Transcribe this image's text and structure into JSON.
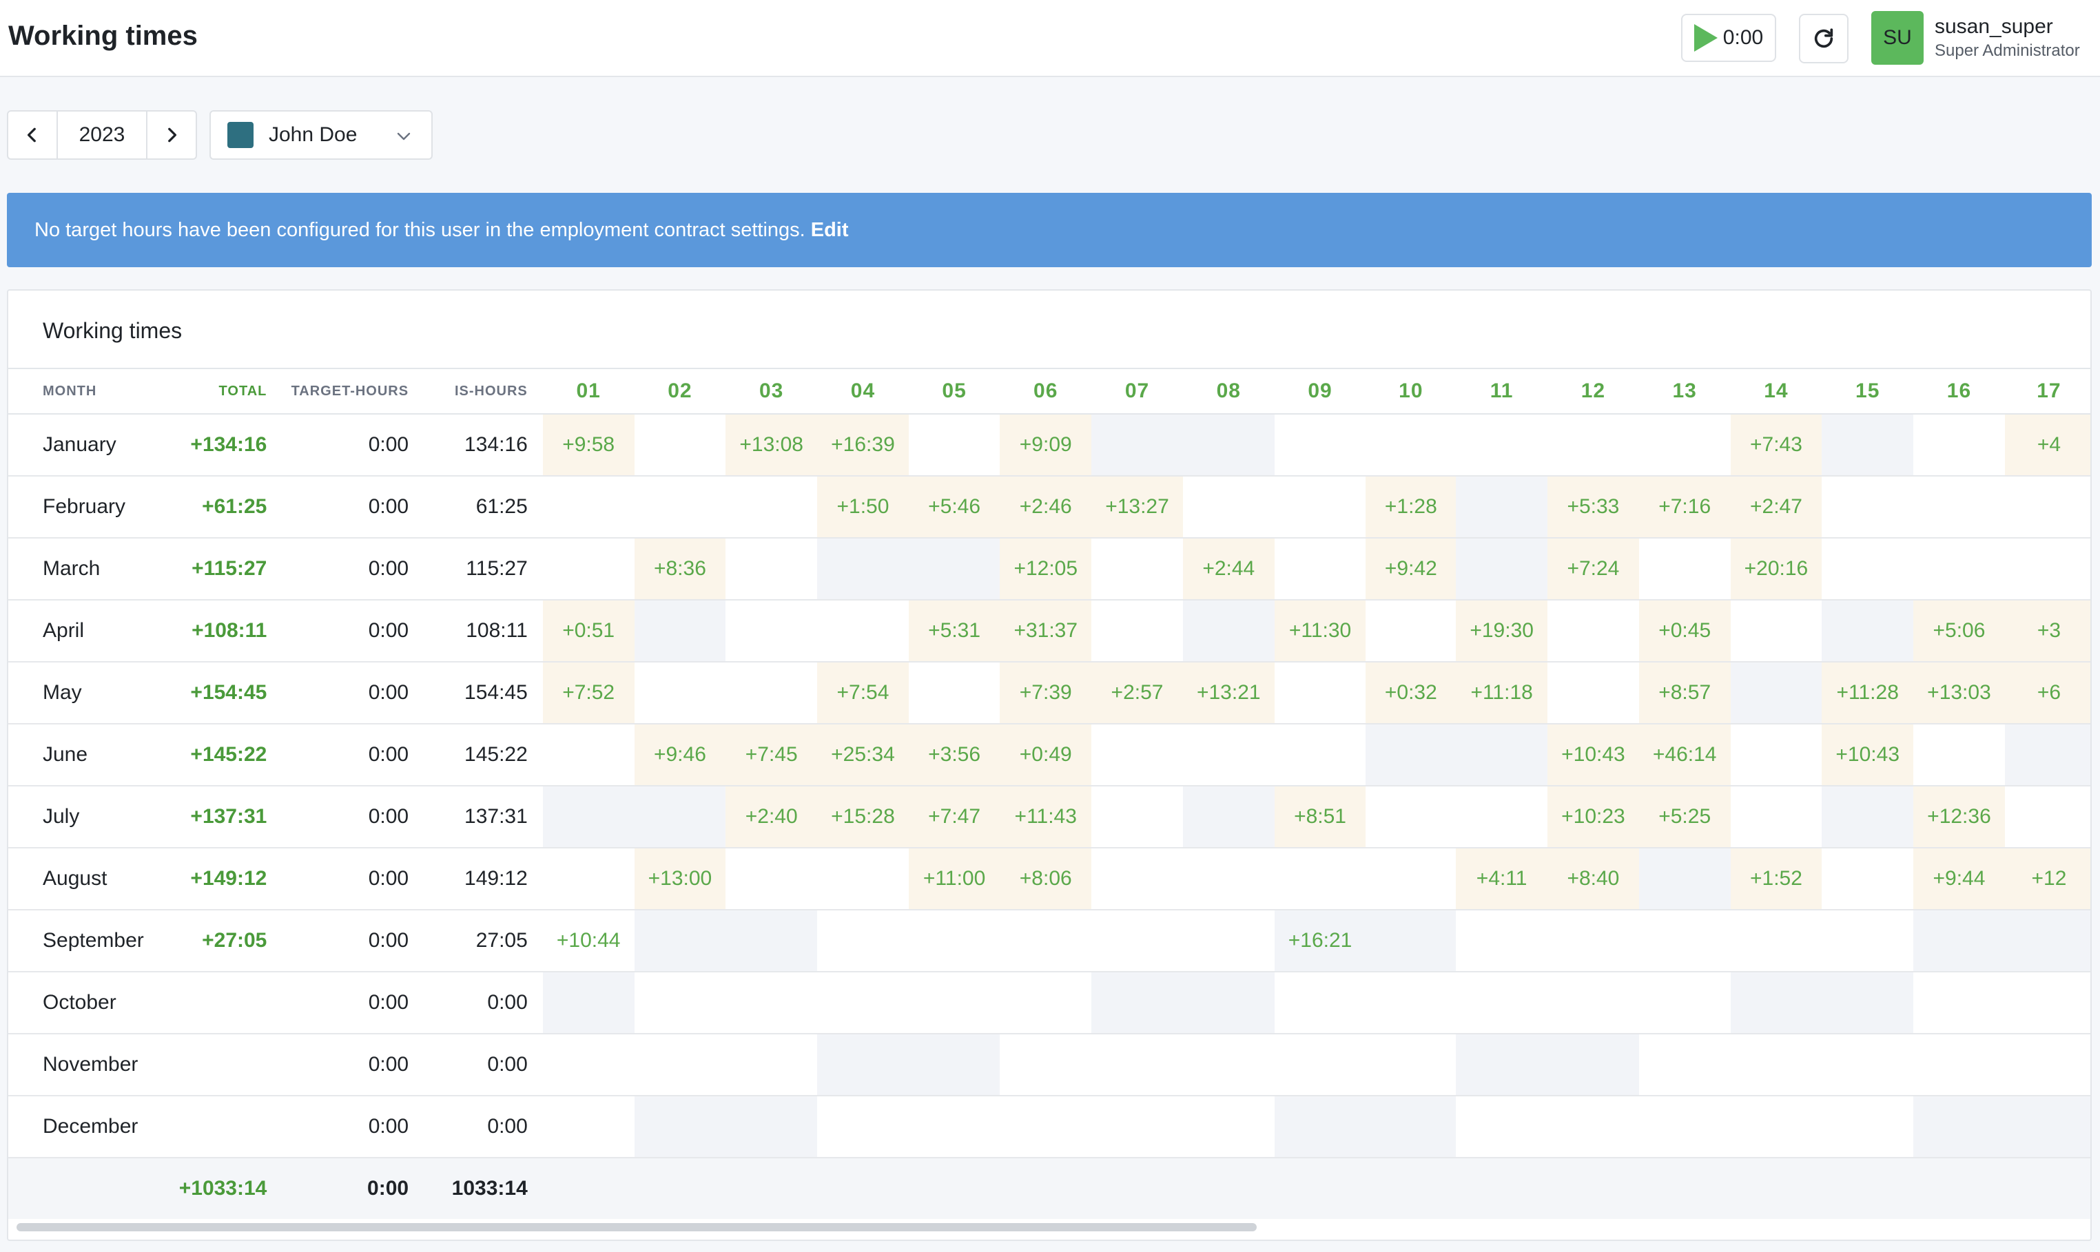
{
  "header": {
    "title": "Working times",
    "timer": "0:00",
    "avatar_initials": "SU",
    "user_name": "susan_super",
    "user_role": "Super Administrator"
  },
  "toolbar": {
    "year": "2023",
    "user_select": "John Doe",
    "user_color": "#2e6f80"
  },
  "alert": {
    "message": "No target hours have been configured for this user in the employment contract settings.",
    "link": "Edit"
  },
  "card": {
    "title": "Working times",
    "columns": {
      "month": "MONTH",
      "total": "TOTAL",
      "target": "TARGET-HOURS",
      "is": "IS-HOURS",
      "days": [
        "01",
        "02",
        "03",
        "04",
        "05",
        "06",
        "07",
        "08",
        "09",
        "10",
        "11",
        "12",
        "13",
        "14",
        "15",
        "16",
        "17"
      ]
    },
    "rows": [
      {
        "month": "January",
        "total": "+134:16",
        "target": "0:00",
        "is": "134:16",
        "cells": [
          {
            "v": "+9:58",
            "bg": "p"
          },
          {
            "v": "",
            "bg": "n"
          },
          {
            "v": "+13:08",
            "bg": "p"
          },
          {
            "v": "+16:39",
            "bg": "p"
          },
          {
            "v": "",
            "bg": "n"
          },
          {
            "v": "+9:09",
            "bg": "p"
          },
          {
            "v": "",
            "bg": "g"
          },
          {
            "v": "",
            "bg": "g"
          },
          {
            "v": "",
            "bg": "n"
          },
          {
            "v": "",
            "bg": "n"
          },
          {
            "v": "",
            "bg": "n"
          },
          {
            "v": "",
            "bg": "n"
          },
          {
            "v": "",
            "bg": "n"
          },
          {
            "v": "+7:43",
            "bg": "p"
          },
          {
            "v": "",
            "bg": "g"
          },
          {
            "v": "",
            "bg": "n"
          },
          {
            "v": "+4",
            "bg": "p"
          }
        ]
      },
      {
        "month": "February",
        "total": "+61:25",
        "target": "0:00",
        "is": "61:25",
        "cells": [
          {
            "v": "",
            "bg": "n"
          },
          {
            "v": "",
            "bg": "n"
          },
          {
            "v": "",
            "bg": "n"
          },
          {
            "v": "+1:50",
            "bg": "p"
          },
          {
            "v": "+5:46",
            "bg": "p"
          },
          {
            "v": "+2:46",
            "bg": "p"
          },
          {
            "v": "+13:27",
            "bg": "p"
          },
          {
            "v": "",
            "bg": "n"
          },
          {
            "v": "",
            "bg": "n"
          },
          {
            "v": "+1:28",
            "bg": "p"
          },
          {
            "v": "",
            "bg": "g"
          },
          {
            "v": "+5:33",
            "bg": "p"
          },
          {
            "v": "+7:16",
            "bg": "p"
          },
          {
            "v": "+2:47",
            "bg": "p"
          },
          {
            "v": "",
            "bg": "n"
          },
          {
            "v": "",
            "bg": "n"
          },
          {
            "v": "",
            "bg": "n"
          }
        ]
      },
      {
        "month": "March",
        "total": "+115:27",
        "target": "0:00",
        "is": "115:27",
        "cells": [
          {
            "v": "",
            "bg": "n"
          },
          {
            "v": "+8:36",
            "bg": "p"
          },
          {
            "v": "",
            "bg": "n"
          },
          {
            "v": "",
            "bg": "g"
          },
          {
            "v": "",
            "bg": "g"
          },
          {
            "v": "+12:05",
            "bg": "p"
          },
          {
            "v": "",
            "bg": "n"
          },
          {
            "v": "+2:44",
            "bg": "p"
          },
          {
            "v": "",
            "bg": "n"
          },
          {
            "v": "+9:42",
            "bg": "p"
          },
          {
            "v": "",
            "bg": "g"
          },
          {
            "v": "+7:24",
            "bg": "p"
          },
          {
            "v": "",
            "bg": "n"
          },
          {
            "v": "+20:16",
            "bg": "p"
          },
          {
            "v": "",
            "bg": "n"
          },
          {
            "v": "",
            "bg": "n"
          },
          {
            "v": "",
            "bg": "n"
          }
        ]
      },
      {
        "month": "April",
        "total": "+108:11",
        "target": "0:00",
        "is": "108:11",
        "cells": [
          {
            "v": "+0:51",
            "bg": "p"
          },
          {
            "v": "",
            "bg": "g"
          },
          {
            "v": "",
            "bg": "n"
          },
          {
            "v": "",
            "bg": "n"
          },
          {
            "v": "+5:31",
            "bg": "p"
          },
          {
            "v": "+31:37",
            "bg": "p"
          },
          {
            "v": "",
            "bg": "n"
          },
          {
            "v": "",
            "bg": "g"
          },
          {
            "v": "+11:30",
            "bg": "p"
          },
          {
            "v": "",
            "bg": "n"
          },
          {
            "v": "+19:30",
            "bg": "p"
          },
          {
            "v": "",
            "bg": "n"
          },
          {
            "v": "+0:45",
            "bg": "p"
          },
          {
            "v": "",
            "bg": "n"
          },
          {
            "v": "",
            "bg": "g"
          },
          {
            "v": "+5:06",
            "bg": "p"
          },
          {
            "v": "+3",
            "bg": "p"
          }
        ]
      },
      {
        "month": "May",
        "total": "+154:45",
        "target": "0:00",
        "is": "154:45",
        "cells": [
          {
            "v": "+7:52",
            "bg": "p"
          },
          {
            "v": "",
            "bg": "n"
          },
          {
            "v": "",
            "bg": "n"
          },
          {
            "v": "+7:54",
            "bg": "p"
          },
          {
            "v": "",
            "bg": "n"
          },
          {
            "v": "+7:39",
            "bg": "p"
          },
          {
            "v": "+2:57",
            "bg": "p"
          },
          {
            "v": "+13:21",
            "bg": "p"
          },
          {
            "v": "",
            "bg": "n"
          },
          {
            "v": "+0:32",
            "bg": "p"
          },
          {
            "v": "+11:18",
            "bg": "p"
          },
          {
            "v": "",
            "bg": "n"
          },
          {
            "v": "+8:57",
            "bg": "p"
          },
          {
            "v": "",
            "bg": "g"
          },
          {
            "v": "+11:28",
            "bg": "p"
          },
          {
            "v": "+13:03",
            "bg": "p"
          },
          {
            "v": "+6",
            "bg": "p"
          }
        ]
      },
      {
        "month": "June",
        "total": "+145:22",
        "target": "0:00",
        "is": "145:22",
        "cells": [
          {
            "v": "",
            "bg": "n"
          },
          {
            "v": "+9:46",
            "bg": "p"
          },
          {
            "v": "+7:45",
            "bg": "p"
          },
          {
            "v": "+25:34",
            "bg": "p"
          },
          {
            "v": "+3:56",
            "bg": "p"
          },
          {
            "v": "+0:49",
            "bg": "p"
          },
          {
            "v": "",
            "bg": "n"
          },
          {
            "v": "",
            "bg": "n"
          },
          {
            "v": "",
            "bg": "n"
          },
          {
            "v": "",
            "bg": "g"
          },
          {
            "v": "",
            "bg": "g"
          },
          {
            "v": "+10:43",
            "bg": "p"
          },
          {
            "v": "+46:14",
            "bg": "p"
          },
          {
            "v": "",
            "bg": "n"
          },
          {
            "v": "+10:43",
            "bg": "p"
          },
          {
            "v": "",
            "bg": "n"
          },
          {
            "v": "",
            "bg": "g"
          }
        ]
      },
      {
        "month": "July",
        "total": "+137:31",
        "target": "0:00",
        "is": "137:31",
        "cells": [
          {
            "v": "",
            "bg": "g"
          },
          {
            "v": "",
            "bg": "g"
          },
          {
            "v": "+2:40",
            "bg": "p"
          },
          {
            "v": "+15:28",
            "bg": "p"
          },
          {
            "v": "+7:47",
            "bg": "p"
          },
          {
            "v": "+11:43",
            "bg": "p"
          },
          {
            "v": "",
            "bg": "n"
          },
          {
            "v": "",
            "bg": "g"
          },
          {
            "v": "+8:51",
            "bg": "p"
          },
          {
            "v": "",
            "bg": "n"
          },
          {
            "v": "",
            "bg": "n"
          },
          {
            "v": "+10:23",
            "bg": "p"
          },
          {
            "v": "+5:25",
            "bg": "p"
          },
          {
            "v": "",
            "bg": "n"
          },
          {
            "v": "",
            "bg": "g"
          },
          {
            "v": "+12:36",
            "bg": "p"
          },
          {
            "v": "",
            "bg": "n"
          }
        ]
      },
      {
        "month": "August",
        "total": "+149:12",
        "target": "0:00",
        "is": "149:12",
        "cells": [
          {
            "v": "",
            "bg": "n"
          },
          {
            "v": "+13:00",
            "bg": "p"
          },
          {
            "v": "",
            "bg": "n"
          },
          {
            "v": "",
            "bg": "n"
          },
          {
            "v": "+11:00",
            "bg": "p"
          },
          {
            "v": "+8:06",
            "bg": "p"
          },
          {
            "v": "",
            "bg": "n"
          },
          {
            "v": "",
            "bg": "n"
          },
          {
            "v": "",
            "bg": "n"
          },
          {
            "v": "",
            "bg": "n"
          },
          {
            "v": "+4:11",
            "bg": "p"
          },
          {
            "v": "+8:40",
            "bg": "p"
          },
          {
            "v": "",
            "bg": "g"
          },
          {
            "v": "+1:52",
            "bg": "p"
          },
          {
            "v": "",
            "bg": "n"
          },
          {
            "v": "+9:44",
            "bg": "p"
          },
          {
            "v": "+12",
            "bg": "p"
          }
        ]
      },
      {
        "month": "September",
        "total": "+27:05",
        "target": "0:00",
        "is": "27:05",
        "cells": [
          {
            "v": "+10:44",
            "bg": "n"
          },
          {
            "v": "",
            "bg": "g"
          },
          {
            "v": "",
            "bg": "g"
          },
          {
            "v": "",
            "bg": "n"
          },
          {
            "v": "",
            "bg": "n"
          },
          {
            "v": "",
            "bg": "n"
          },
          {
            "v": "",
            "bg": "n"
          },
          {
            "v": "",
            "bg": "n"
          },
          {
            "v": "+16:21",
            "bg": "g"
          },
          {
            "v": "",
            "bg": "g"
          },
          {
            "v": "",
            "bg": "n"
          },
          {
            "v": "",
            "bg": "n"
          },
          {
            "v": "",
            "bg": "n"
          },
          {
            "v": "",
            "bg": "n"
          },
          {
            "v": "",
            "bg": "n"
          },
          {
            "v": "",
            "bg": "g"
          },
          {
            "v": "",
            "bg": "g"
          }
        ]
      },
      {
        "month": "October",
        "total": "",
        "target": "0:00",
        "is": "0:00",
        "cells": [
          {
            "v": "",
            "bg": "g"
          },
          {
            "v": "",
            "bg": "n"
          },
          {
            "v": "",
            "bg": "n"
          },
          {
            "v": "",
            "bg": "n"
          },
          {
            "v": "",
            "bg": "n"
          },
          {
            "v": "",
            "bg": "n"
          },
          {
            "v": "",
            "bg": "g"
          },
          {
            "v": "",
            "bg": "g"
          },
          {
            "v": "",
            "bg": "n"
          },
          {
            "v": "",
            "bg": "n"
          },
          {
            "v": "",
            "bg": "n"
          },
          {
            "v": "",
            "bg": "n"
          },
          {
            "v": "",
            "bg": "n"
          },
          {
            "v": "",
            "bg": "g"
          },
          {
            "v": "",
            "bg": "g"
          },
          {
            "v": "",
            "bg": "n"
          },
          {
            "v": "",
            "bg": "n"
          }
        ]
      },
      {
        "month": "November",
        "total": "",
        "target": "0:00",
        "is": "0:00",
        "cells": [
          {
            "v": "",
            "bg": "n"
          },
          {
            "v": "",
            "bg": "n"
          },
          {
            "v": "",
            "bg": "n"
          },
          {
            "v": "",
            "bg": "g"
          },
          {
            "v": "",
            "bg": "g"
          },
          {
            "v": "",
            "bg": "n"
          },
          {
            "v": "",
            "bg": "n"
          },
          {
            "v": "",
            "bg": "n"
          },
          {
            "v": "",
            "bg": "n"
          },
          {
            "v": "",
            "bg": "n"
          },
          {
            "v": "",
            "bg": "g"
          },
          {
            "v": "",
            "bg": "g"
          },
          {
            "v": "",
            "bg": "n"
          },
          {
            "v": "",
            "bg": "n"
          },
          {
            "v": "",
            "bg": "n"
          },
          {
            "v": "",
            "bg": "n"
          },
          {
            "v": "",
            "bg": "n"
          }
        ]
      },
      {
        "month": "December",
        "total": "",
        "target": "0:00",
        "is": "0:00",
        "cells": [
          {
            "v": "",
            "bg": "n"
          },
          {
            "v": "",
            "bg": "g"
          },
          {
            "v": "",
            "bg": "g"
          },
          {
            "v": "",
            "bg": "n"
          },
          {
            "v": "",
            "bg": "n"
          },
          {
            "v": "",
            "bg": "n"
          },
          {
            "v": "",
            "bg": "n"
          },
          {
            "v": "",
            "bg": "n"
          },
          {
            "v": "",
            "bg": "g"
          },
          {
            "v": "",
            "bg": "g"
          },
          {
            "v": "",
            "bg": "n"
          },
          {
            "v": "",
            "bg": "n"
          },
          {
            "v": "",
            "bg": "n"
          },
          {
            "v": "",
            "bg": "n"
          },
          {
            "v": "",
            "bg": "n"
          },
          {
            "v": "",
            "bg": "g"
          },
          {
            "v": "",
            "bg": "g"
          }
        ]
      }
    ],
    "footer": {
      "total": "+1033:14",
      "target": "0:00",
      "is": "1033:14"
    }
  },
  "colors": {
    "alert": "#5b98db",
    "positive": "#5aa84a",
    "workday_highlight": "#fbf5ea",
    "weekend": "#f2f4f8",
    "avatar": "#5cb85c"
  },
  "icons": [
    "play-icon",
    "refresh-icon",
    "chevron-left-icon",
    "chevron-right-icon",
    "chevron-down-icon"
  ]
}
